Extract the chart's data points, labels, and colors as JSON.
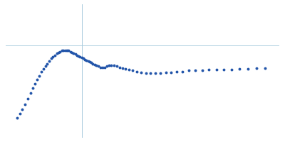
{
  "bg_color": "#ffffff",
  "point_color": "#2255aa",
  "axis_line_color": "#aaccdd",
  "figsize": [
    4.0,
    2.0
  ],
  "dpi": 100,
  "xlim": [
    0.0,
    1.02
  ],
  "ylim": [
    -0.55,
    1.0
  ],
  "axhline_y": 0.52,
  "axvline_x": 0.285,
  "x": [
    0.042,
    0.052,
    0.062,
    0.072,
    0.082,
    0.092,
    0.1,
    0.108,
    0.116,
    0.124,
    0.132,
    0.14,
    0.148,
    0.155,
    0.162,
    0.169,
    0.176,
    0.183,
    0.19,
    0.197,
    0.203,
    0.21,
    0.216,
    0.222,
    0.228,
    0.235,
    0.241,
    0.247,
    0.253,
    0.259,
    0.265,
    0.271,
    0.277,
    0.283,
    0.289,
    0.295,
    0.301,
    0.307,
    0.313,
    0.319,
    0.325,
    0.332,
    0.338,
    0.345,
    0.352,
    0.36,
    0.368,
    0.376,
    0.385,
    0.394,
    0.404,
    0.414,
    0.424,
    0.435,
    0.447,
    0.46,
    0.474,
    0.489,
    0.505,
    0.522,
    0.54,
    0.558,
    0.577,
    0.597,
    0.617,
    0.638,
    0.66,
    0.683,
    0.707,
    0.732,
    0.758,
    0.785,
    0.813,
    0.842,
    0.872,
    0.903,
    0.935,
    0.967
  ],
  "y": [
    -0.32,
    -0.27,
    -0.22,
    -0.16,
    -0.1,
    -0.03,
    0.03,
    0.08,
    0.13,
    0.17,
    0.22,
    0.25,
    0.28,
    0.31,
    0.34,
    0.37,
    0.39,
    0.41,
    0.43,
    0.44,
    0.45,
    0.46,
    0.46,
    0.46,
    0.46,
    0.46,
    0.45,
    0.44,
    0.43,
    0.42,
    0.41,
    0.4,
    0.39,
    0.38,
    0.37,
    0.36,
    0.35,
    0.34,
    0.33,
    0.32,
    0.31,
    0.3,
    0.29,
    0.28,
    0.27,
    0.27,
    0.27,
    0.28,
    0.29,
    0.29,
    0.29,
    0.28,
    0.27,
    0.26,
    0.25,
    0.24,
    0.23,
    0.22,
    0.21,
    0.2,
    0.2,
    0.2,
    0.2,
    0.21,
    0.21,
    0.22,
    0.22,
    0.23,
    0.23,
    0.23,
    0.24,
    0.24,
    0.24,
    0.24,
    0.25,
    0.25,
    0.26,
    0.26
  ],
  "yerr": [
    0.0,
    0.0,
    0.0,
    0.0,
    0.0,
    0.0,
    0.0,
    0.0,
    0.0,
    0.0,
    0.0,
    0.0,
    0.0,
    0.0,
    0.0,
    0.0,
    0.0,
    0.0,
    0.0,
    0.0,
    0.0,
    0.0,
    0.0,
    0.0,
    0.0,
    0.0,
    0.0,
    0.0,
    0.0,
    0.0,
    0.003,
    0.003,
    0.003,
    0.003,
    0.003,
    0.003,
    0.003,
    0.003,
    0.003,
    0.003,
    0.004,
    0.004,
    0.004,
    0.004,
    0.004,
    0.004,
    0.004,
    0.004,
    0.004,
    0.004,
    0.006,
    0.006,
    0.006,
    0.006,
    0.006,
    0.007,
    0.007,
    0.007,
    0.007,
    0.007,
    0.009,
    0.009,
    0.009,
    0.009,
    0.009,
    0.009,
    0.009,
    0.009,
    0.009,
    0.009,
    0.007,
    0.007,
    0.007,
    0.007,
    0.007,
    0.007,
    0.007,
    0.007
  ]
}
